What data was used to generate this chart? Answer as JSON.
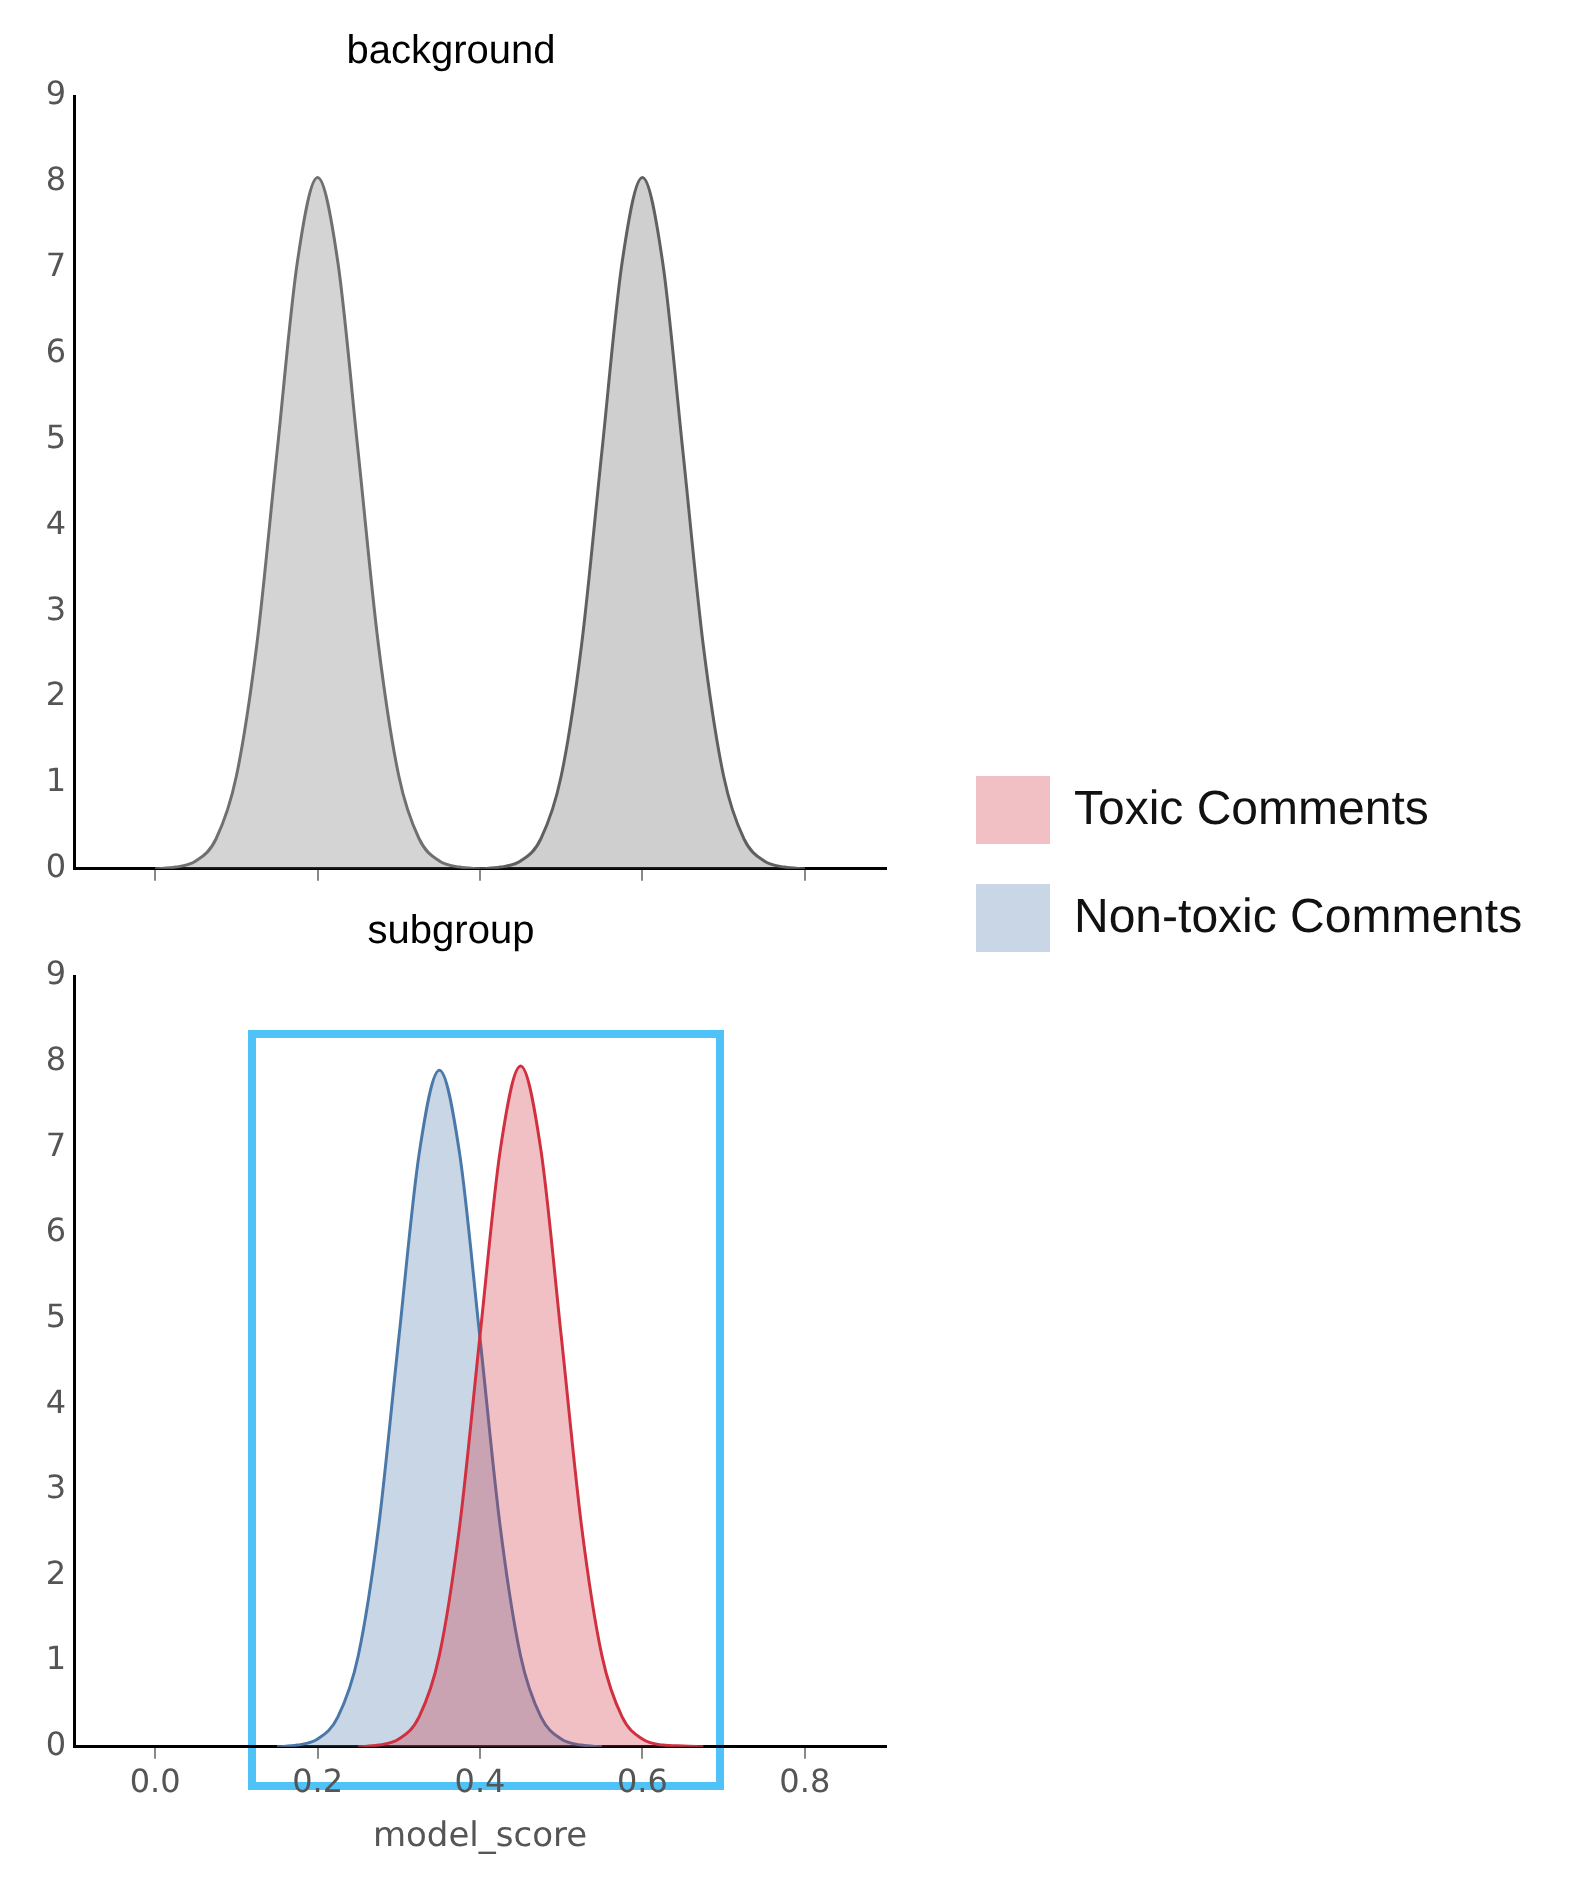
{
  "chart_data": [
    {
      "type": "area",
      "title": "background",
      "xlim": [
        -0.1,
        0.9
      ],
      "xticks": [
        0,
        0.2,
        0.4,
        0.6,
        0.8
      ],
      "ylim": [
        0,
        9
      ],
      "yticks": [
        0,
        1,
        2,
        3,
        4,
        5,
        6,
        7,
        8,
        9
      ],
      "tick_labels": "y",
      "grid": false,
      "series": [
        {
          "color": "#707070",
          "x": [
            0,
            0.025,
            0.05,
            0.075,
            0.1,
            0.125,
            0.15,
            0.175,
            0.2,
            0.225,
            0.25,
            0.275,
            0.3,
            0.325,
            0.35,
            0.375,
            0.4
          ],
          "values": [
            0,
            0.02,
            0.09,
            0.35,
            1.08,
            2.6,
            4.85,
            7.06,
            8.05,
            7.06,
            4.85,
            2.6,
            1.08,
            0.35,
            0.09,
            0.02,
            0
          ]
        },
        {
          "color": "#606060",
          "x": [
            0.4,
            0.425,
            0.45,
            0.475,
            0.5,
            0.525,
            0.55,
            0.575,
            0.6,
            0.625,
            0.65,
            0.675,
            0.7,
            0.725,
            0.75,
            0.775,
            0.8
          ],
          "values": [
            0,
            0.02,
            0.09,
            0.35,
            1.08,
            2.6,
            4.85,
            7.06,
            8.05,
            7.06,
            4.85,
            2.6,
            1.08,
            0.35,
            0.09,
            0.02,
            0
          ]
        }
      ]
    },
    {
      "type": "area",
      "title": "subgroup",
      "xlabel": "model_score",
      "xlim": [
        -0.1,
        0.9
      ],
      "xticks": [
        {
          "value": 0,
          "label": "0.0"
        },
        0.2,
        0.4,
        0.6,
        0.8
      ],
      "ylim": [
        0,
        9
      ],
      "yticks": [
        0,
        1,
        2,
        3,
        4,
        5,
        6,
        7,
        8,
        9
      ],
      "grid": false,
      "legend": "right",
      "series": [
        {
          "name": "Toxic Comments",
          "color": "#d0303f",
          "x": [
            0.25,
            0.275,
            0.3,
            0.325,
            0.35,
            0.375,
            0.4,
            0.425,
            0.45,
            0.475,
            0.5,
            0.525,
            0.55,
            0.575,
            0.6,
            0.625,
            0.65,
            0.675
          ],
          "values": [
            0,
            0.02,
            0.09,
            0.35,
            1.07,
            2.58,
            4.8,
            6.97,
            7.95,
            6.97,
            4.8,
            2.58,
            1.07,
            0.35,
            0.09,
            0.02,
            0.01,
            0
          ]
        },
        {
          "name": "Non-toxic Comments",
          "color": "#4a78a8",
          "x": [
            0.15,
            0.175,
            0.2,
            0.225,
            0.25,
            0.275,
            0.3,
            0.325,
            0.35,
            0.375,
            0.4,
            0.425,
            0.45,
            0.475,
            0.5,
            0.525,
            0.55
          ],
          "values": [
            0,
            0.02,
            0.09,
            0.35,
            1.06,
            2.56,
            4.77,
            6.92,
            7.9,
            6.92,
            4.77,
            2.56,
            1.06,
            0.35,
            0.09,
            0.02,
            0
          ]
        }
      ]
    }
  ]
}
